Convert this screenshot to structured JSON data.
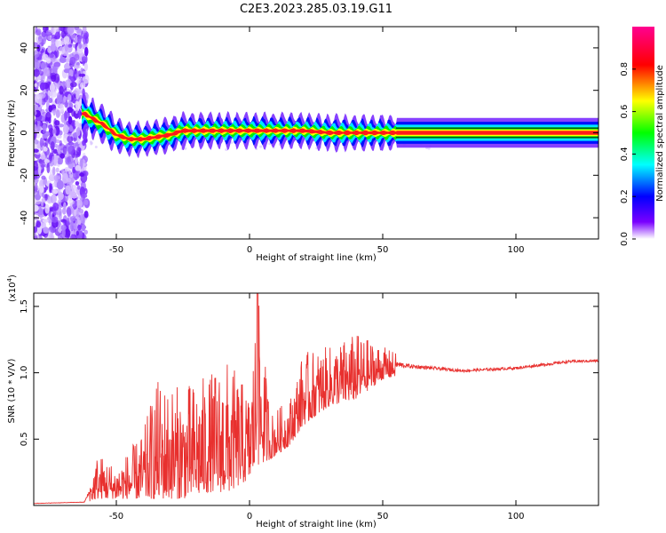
{
  "page_title": "C2E3.2023.285.03.19.G11",
  "chart_data": [
    {
      "type": "heatmap",
      "title": "C2E3.2023.285.03.19.G11",
      "xlabel": "Height of straight line (km)",
      "ylabel": "Frequency (Hz)",
      "xlim": [
        -81,
        131
      ],
      "ylim": [
        -50,
        50
      ],
      "xticks": [
        -50,
        0,
        50,
        100
      ],
      "yticks": [
        40,
        20,
        0,
        -20,
        -40
      ],
      "centerline": [
        {
          "x": -62,
          "f": 9
        },
        {
          "x": -58,
          "f": 6
        },
        {
          "x": -55,
          "f": 4
        },
        {
          "x": -50,
          "f": -1
        },
        {
          "x": -45,
          "f": -3
        },
        {
          "x": -40,
          "f": -3
        },
        {
          "x": -35,
          "f": -2
        },
        {
          "x": -30,
          "f": -1
        },
        {
          "x": -25,
          "f": 1
        },
        {
          "x": -20,
          "f": 1
        },
        {
          "x": -15,
          "f": 1
        },
        {
          "x": -10,
          "f": 1
        },
        {
          "x": 0,
          "f": 1
        },
        {
          "x": 10,
          "f": 1
        },
        {
          "x": 20,
          "f": 1
        },
        {
          "x": 30,
          "f": 0
        },
        {
          "x": 40,
          "f": 0
        },
        {
          "x": 55,
          "f": 0
        },
        {
          "x": 131,
          "f": 0
        }
      ],
      "colorbar": {
        "label": "Normalized spectral amplitude",
        "range": [
          0,
          1
        ],
        "ticks": [
          "0.0",
          "0.2",
          "0.4",
          "0.6",
          "0.8"
        ],
        "tick_values": [
          0.0,
          0.2,
          0.4,
          0.6,
          0.8
        ],
        "colors": [
          "#ffffff",
          "#7a00ff",
          "#0000ff",
          "#00ffff",
          "#00ff00",
          "#ffff00",
          "#ff0000",
          "#ff0090"
        ]
      }
    },
    {
      "type": "line",
      "xlabel": "Height of straight line (km)",
      "ylabel": "SNR (10 * V/V)",
      "scale_label": "(x10",
      "scale_exp": "4",
      "scale_close": ")",
      "xlim": [
        -81,
        131
      ],
      "ylim": [
        0,
        1.6
      ],
      "xticks": [
        -50,
        0,
        50,
        100
      ],
      "yticks": [
        0.5,
        1.0,
        1.5
      ],
      "ytick_labels": [
        "0.5",
        "1.0",
        "1.5"
      ],
      "color": "#e8302e",
      "series_envelope": [
        {
          "x": -81,
          "low": 0.01,
          "high": 0.02
        },
        {
          "x": -62,
          "low": 0.02,
          "high": 0.03
        },
        {
          "x": -57,
          "low": 0.05,
          "high": 0.4
        },
        {
          "x": -50,
          "low": 0.05,
          "high": 0.3
        },
        {
          "x": -40,
          "low": 0.05,
          "high": 0.55
        },
        {
          "x": -35,
          "low": 0.05,
          "high": 0.95
        },
        {
          "x": -25,
          "low": 0.05,
          "high": 0.9
        },
        {
          "x": -15,
          "low": 0.1,
          "high": 1.0
        },
        {
          "x": -8,
          "low": 0.1,
          "high": 1.1
        },
        {
          "x": 0,
          "low": 0.2,
          "high": 0.85
        },
        {
          "x": 3,
          "low": 0.3,
          "high": 1.6
        },
        {
          "x": 8,
          "low": 0.35,
          "high": 0.7
        },
        {
          "x": 15,
          "low": 0.45,
          "high": 0.8
        },
        {
          "x": 20,
          "low": 0.6,
          "high": 1.15
        },
        {
          "x": 30,
          "low": 0.75,
          "high": 1.2
        },
        {
          "x": 40,
          "low": 0.8,
          "high": 1.3
        },
        {
          "x": 50,
          "low": 0.95,
          "high": 1.2
        },
        {
          "x": 60,
          "low": 1.0,
          "high": 1.1
        },
        {
          "x": 80,
          "low": 0.98,
          "high": 1.05
        },
        {
          "x": 100,
          "low": 1.0,
          "high": 1.07
        },
        {
          "x": 120,
          "low": 1.05,
          "high": 1.12
        },
        {
          "x": 131,
          "low": 1.06,
          "high": 1.12
        }
      ]
    }
  ]
}
